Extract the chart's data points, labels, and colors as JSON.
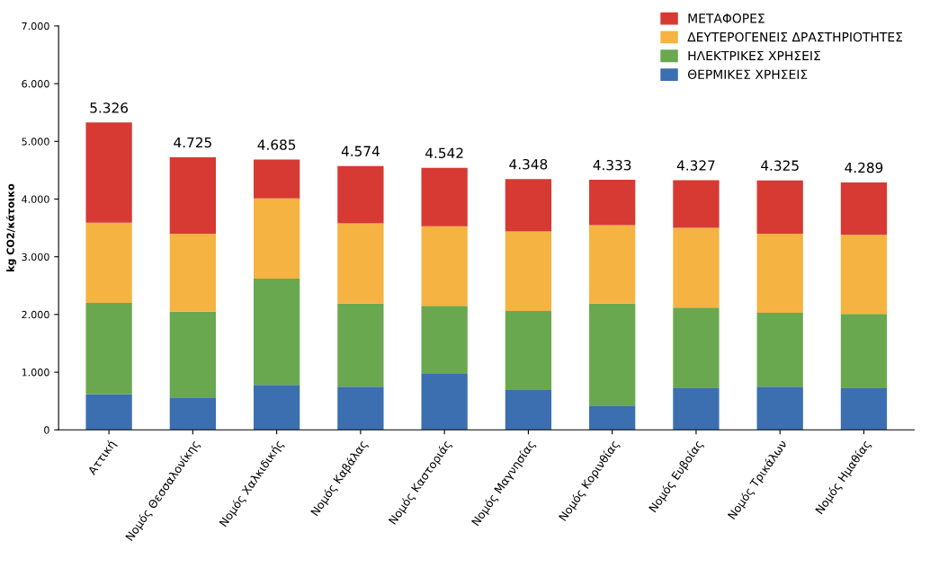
{
  "chart_data": {
    "type": "bar",
    "stacked": true,
    "ylabel": "kg CO2/κάτοικο",
    "categories": [
      "Αττική",
      "Νομός Θεσσαλονίκης",
      "Νομός Χαλκιδικής",
      "Νομός Καβάλας",
      "Νομός Καστοριάς",
      "Νομός Μαγνησίας",
      "Νομός Κορινθίας",
      "Νομός Ευβοίας",
      "Νομός Τρικάλων",
      "Νομός Ημαθίας"
    ],
    "series": [
      {
        "name": "ΘΕΡΜΙΚΕΣ ΧΡΗΣΕΙΣ",
        "color": "#3b6fb0",
        "values": [
          620,
          560,
          780,
          750,
          970,
          690,
          410,
          720,
          750,
          720
        ]
      },
      {
        "name": "ΗΛΕΚΤΡΙΚΕΣ ΧΡΗΣΕΙΣ",
        "color": "#6aa84f",
        "values": [
          1580,
          1490,
          1840,
          1440,
          1180,
          1370,
          1780,
          1400,
          1280,
          1290
        ]
      },
      {
        "name": "ΔΕΥΤΕΡΟΓΕΝΕΙΣ ΔΡΑΣΤΗΡΙΟΤΗΤΕΣ",
        "color": "#f5b342",
        "values": [
          1390,
          1350,
          1390,
          1390,
          1380,
          1380,
          1360,
          1380,
          1370,
          1370
        ]
      },
      {
        "name": "ΜΕΤΑΦΟΡΕΣ",
        "color": "#d63a33",
        "values": [
          1736,
          1325,
          675,
          994,
          1012,
          908,
          783,
          827,
          925,
          909
        ]
      }
    ],
    "totals": [
      "5.326",
      "4.725",
      "4.685",
      "4.574",
      "4.542",
      "4.348",
      "4.333",
      "4.327",
      "4.325",
      "4.289"
    ],
    "ylim": [
      0,
      7000
    ],
    "yticks": [
      0,
      {
        "value": 1000,
        "label": "1.000"
      },
      {
        "value": 2000,
        "label": "2.000"
      },
      {
        "value": 3000,
        "label": "3.000"
      },
      {
        "value": 4000,
        "label": "4.000"
      },
      {
        "value": 5000,
        "label": "5.000"
      },
      {
        "value": 6000,
        "label": "6.000"
      },
      {
        "value": 7000,
        "label": "7.000"
      }
    ],
    "legend": "top right"
  }
}
